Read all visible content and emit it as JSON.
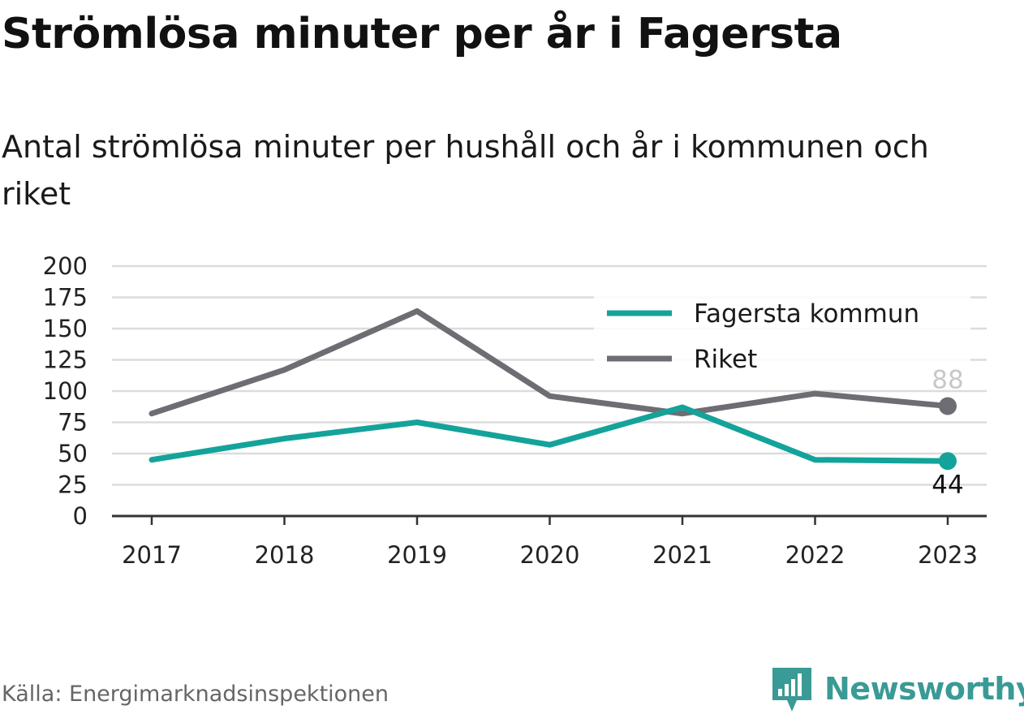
{
  "title": "Strömlösa minuter per år i Fagersta",
  "subtitle": "Antal strömlösa minuter per hushåll och år i kommunen och riket",
  "source": "Källa: Energimarknadsinspektionen",
  "brand": {
    "name": "Newsworthy",
    "icon": "newsworthy-logo-icon",
    "color": "#3a9a95"
  },
  "chart_data": {
    "type": "line",
    "x": [
      "2017",
      "2018",
      "2019",
      "2020",
      "2021",
      "2022",
      "2023"
    ],
    "ylim": [
      0,
      200
    ],
    "yticks": [
      0,
      25,
      50,
      75,
      100,
      125,
      150,
      175,
      200
    ],
    "grid": true,
    "legend_position": "top-right",
    "series": [
      {
        "name": "Fagersta kommun",
        "color": "#14a39a",
        "values": [
          45,
          62,
          75,
          57,
          87,
          45,
          44
        ],
        "end_label": "44"
      },
      {
        "name": "Riket",
        "color": "#6e6d74",
        "values": [
          82,
          117,
          164,
          96,
          82,
          98,
          88
        ],
        "end_label": "88"
      }
    ]
  }
}
